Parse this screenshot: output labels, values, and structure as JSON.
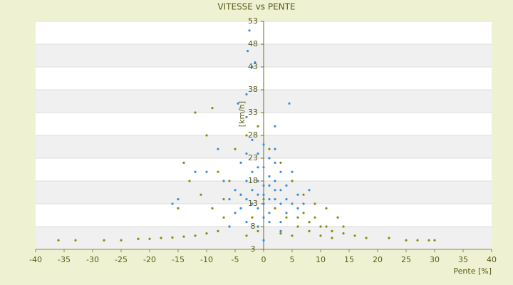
{
  "chart_data": {
    "type": "scatter",
    "title": "VITESSE vs PENTE",
    "x_label": "Pente [%]",
    "y_label": "[km/h]",
    "xlim": [
      -40,
      40
    ],
    "xticks": [
      -40,
      -35,
      -30,
      -25,
      -20,
      -15,
      -10,
      -5,
      0,
      5,
      10,
      15,
      20,
      25,
      30,
      35,
      40
    ],
    "ylim": [
      3,
      53
    ],
    "yticks": [
      3,
      8,
      13,
      18,
      23,
      28,
      33,
      38,
      43,
      48,
      53
    ],
    "series": [
      {
        "color": "#8a8a10",
        "x": [
          -36,
          -33,
          -28,
          -25,
          -22,
          -20,
          -18,
          -16,
          -14,
          -12,
          -10,
          -8,
          -6,
          22,
          25,
          27,
          29,
          30,
          18,
          16,
          14,
          12,
          10,
          8,
          6,
          -12,
          -9,
          -10,
          -14,
          -13,
          -11,
          -9,
          -7,
          -5,
          -3,
          -1,
          1,
          3,
          5,
          7,
          9,
          11,
          13,
          14,
          -15,
          -8,
          -6,
          -4,
          2,
          4,
          6,
          8,
          10,
          12,
          0,
          -2,
          -7,
          7,
          9,
          11,
          5,
          3,
          -3,
          -1
        ],
        "values": [
          5,
          5,
          5,
          5,
          5.3,
          5.3,
          5.5,
          5.6,
          5.8,
          6,
          6.5,
          7,
          8,
          5.5,
          5,
          5,
          5,
          5,
          5.5,
          6,
          6.5,
          7,
          8,
          9,
          10,
          33,
          34,
          28,
          22,
          18,
          15,
          12,
          10,
          25,
          28,
          30,
          25,
          22,
          18,
          15,
          13,
          12,
          10,
          8,
          12,
          20,
          18,
          15,
          12,
          10,
          8,
          7,
          6,
          5.5,
          14,
          10,
          14,
          11,
          10,
          8,
          6,
          6.5,
          6,
          7
        ]
      },
      {
        "color": "#3a8fd9",
        "x": [
          -2.5,
          -2.8,
          -2,
          -1.5,
          -3,
          -4.5,
          4.5,
          -3,
          2,
          -16,
          -15,
          -12,
          8,
          -8,
          -10,
          5,
          6,
          -6,
          0,
          3,
          -3,
          -2,
          -1,
          0,
          1,
          2,
          3,
          -4,
          4,
          -2,
          0,
          1,
          2,
          -1,
          0,
          1,
          3,
          -3,
          -5,
          5,
          -4,
          2,
          -1,
          0,
          -2,
          1,
          4,
          -6,
          6,
          -5,
          3,
          -3,
          -1,
          1,
          0,
          2,
          -2,
          -1,
          4,
          -4,
          -7,
          7,
          0,
          1,
          -1,
          2,
          -3,
          3
        ],
        "values": [
          51,
          46.5,
          43,
          44,
          37,
          35,
          35,
          32,
          30,
          13,
          14,
          20,
          16,
          25,
          20,
          20,
          15,
          8,
          5,
          7,
          14,
          16,
          18,
          15,
          17,
          14,
          13,
          12,
          11,
          20,
          21,
          19,
          18,
          12,
          10,
          11,
          16,
          18,
          16,
          13,
          22,
          22,
          24,
          26,
          27,
          23,
          17,
          14,
          12,
          11,
          9,
          9,
          15,
          14,
          17,
          16,
          13,
          21,
          14,
          15,
          18,
          13,
          13,
          9,
          8,
          25,
          24,
          20
        ]
      }
    ]
  }
}
